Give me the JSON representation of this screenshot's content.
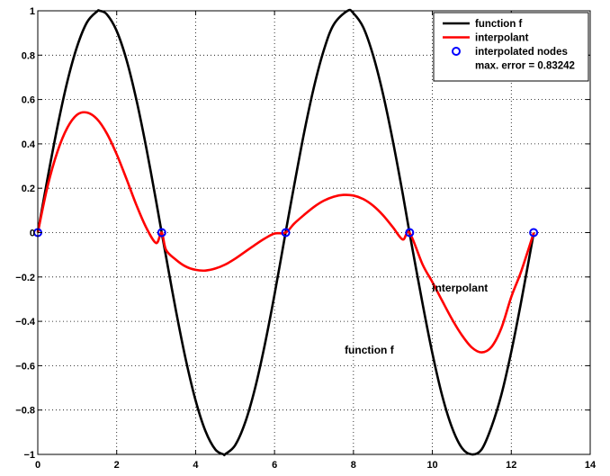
{
  "chart_data": {
    "type": "line",
    "title": "",
    "xlabel": "",
    "ylabel": "",
    "xlim": [
      0,
      14
    ],
    "ylim": [
      -1,
      1
    ],
    "xticks": [
      0,
      2,
      4,
      6,
      8,
      10,
      12,
      14
    ],
    "yticks": [
      -1,
      -0.8,
      -0.6,
      -0.4,
      -0.2,
      0,
      0.2,
      0.4,
      0.6,
      0.8,
      1
    ],
    "xtick_labels": [
      "0",
      "2",
      "4",
      "6",
      "8",
      "10",
      "12",
      "14"
    ],
    "ytick_labels": [
      "−1",
      "−0.8",
      "−0.6",
      "−0.4",
      "−0.2",
      "0",
      "0.2",
      "0.4",
      "0.6",
      "0.8",
      "1"
    ],
    "grid": true,
    "legend_position": "top-right",
    "series": [
      {
        "name": "function f",
        "color": "#000000",
        "style": "line",
        "x": [
          0,
          0.25,
          0.5,
          0.75,
          1.0,
          1.25,
          1.5,
          1.57,
          1.75,
          2.0,
          2.25,
          2.5,
          2.75,
          3.0,
          3.14,
          3.25,
          3.5,
          3.75,
          4.0,
          4.25,
          4.5,
          4.71,
          4.75,
          5.0,
          5.25,
          5.5,
          5.75,
          6.0,
          6.28,
          6.5,
          6.75,
          7.0,
          7.25,
          7.5,
          7.85,
          8.0,
          8.25,
          8.5,
          8.75,
          9.0,
          9.25,
          9.42,
          9.75,
          10.0,
          10.25,
          10.5,
          10.75,
          11.0,
          11.25,
          11.5,
          11.75,
          12.0,
          12.25,
          12.57
        ],
        "y": [
          0,
          0.247,
          0.479,
          0.682,
          0.841,
          0.949,
          0.997,
          1.0,
          0.984,
          0.909,
          0.778,
          0.598,
          0.382,
          0.141,
          0,
          -0.108,
          -0.351,
          -0.572,
          -0.757,
          -0.895,
          -0.978,
          -1.0,
          -0.999,
          -0.959,
          -0.859,
          -0.706,
          -0.508,
          -0.279,
          0,
          0.215,
          0.451,
          0.657,
          0.823,
          0.938,
          1.0,
          0.989,
          0.925,
          0.798,
          0.624,
          0.412,
          0.174,
          0,
          -0.319,
          -0.544,
          -0.736,
          -0.88,
          -0.971,
          -1.0,
          -0.977,
          -0.875,
          -0.73,
          -0.537,
          -0.312,
          0
        ]
      },
      {
        "name": "interpolant",
        "color": "#ff0000",
        "style": "line",
        "x": [
          0,
          0.25,
          0.5,
          0.75,
          1.0,
          1.25,
          1.5,
          1.75,
          2.0,
          2.25,
          2.5,
          2.75,
          3.0,
          3.14,
          3.25,
          3.5,
          3.75,
          4.0,
          4.25,
          4.5,
          4.75,
          5.0,
          5.25,
          5.5,
          5.75,
          6.0,
          6.28,
          6.5,
          6.75,
          7.0,
          7.25,
          7.5,
          7.75,
          8.0,
          8.25,
          8.5,
          8.75,
          9.0,
          9.25,
          9.42,
          9.75,
          10.0,
          10.25,
          10.5,
          10.75,
          11.0,
          11.25,
          11.5,
          11.75,
          12.0,
          12.25,
          12.57
        ],
        "y": [
          0,
          0.21,
          0.366,
          0.473,
          0.532,
          0.541,
          0.512,
          0.447,
          0.353,
          0.241,
          0.124,
          0.022,
          -0.047,
          0,
          -0.078,
          -0.122,
          -0.153,
          -0.168,
          -0.171,
          -0.162,
          -0.144,
          -0.118,
          -0.087,
          -0.056,
          -0.027,
          -0.004,
          0,
          0.041,
          0.08,
          0.116,
          0.144,
          0.162,
          0.17,
          0.167,
          0.151,
          0.121,
          0.078,
          0.024,
          -0.031,
          0,
          -0.143,
          -0.223,
          -0.308,
          -0.391,
          -0.463,
          -0.518,
          -0.54,
          -0.515,
          -0.43,
          -0.29,
          -0.175,
          0
        ]
      }
    ],
    "nodes": {
      "name": "interpolated nodes",
      "color": "#0000ff",
      "x": [
        0,
        3.1416,
        6.2832,
        9.4248,
        12.5664
      ],
      "y": [
        0,
        0,
        0,
        0,
        0
      ]
    },
    "legend": {
      "entries": [
        {
          "label": "function f",
          "color": "#000000",
          "marker": "line"
        },
        {
          "label": "interpolant",
          "color": "#ff0000",
          "marker": "line"
        },
        {
          "label": "interpolated nodes",
          "color": "#0000ff",
          "marker": "circle"
        }
      ],
      "extra_text": "max. error = 0.83242"
    },
    "annotations": [
      {
        "text": "interpolant",
        "x": 10.7,
        "y": -0.25
      },
      {
        "text": "function f",
        "x": 8.4,
        "y": -0.53
      }
    ]
  }
}
